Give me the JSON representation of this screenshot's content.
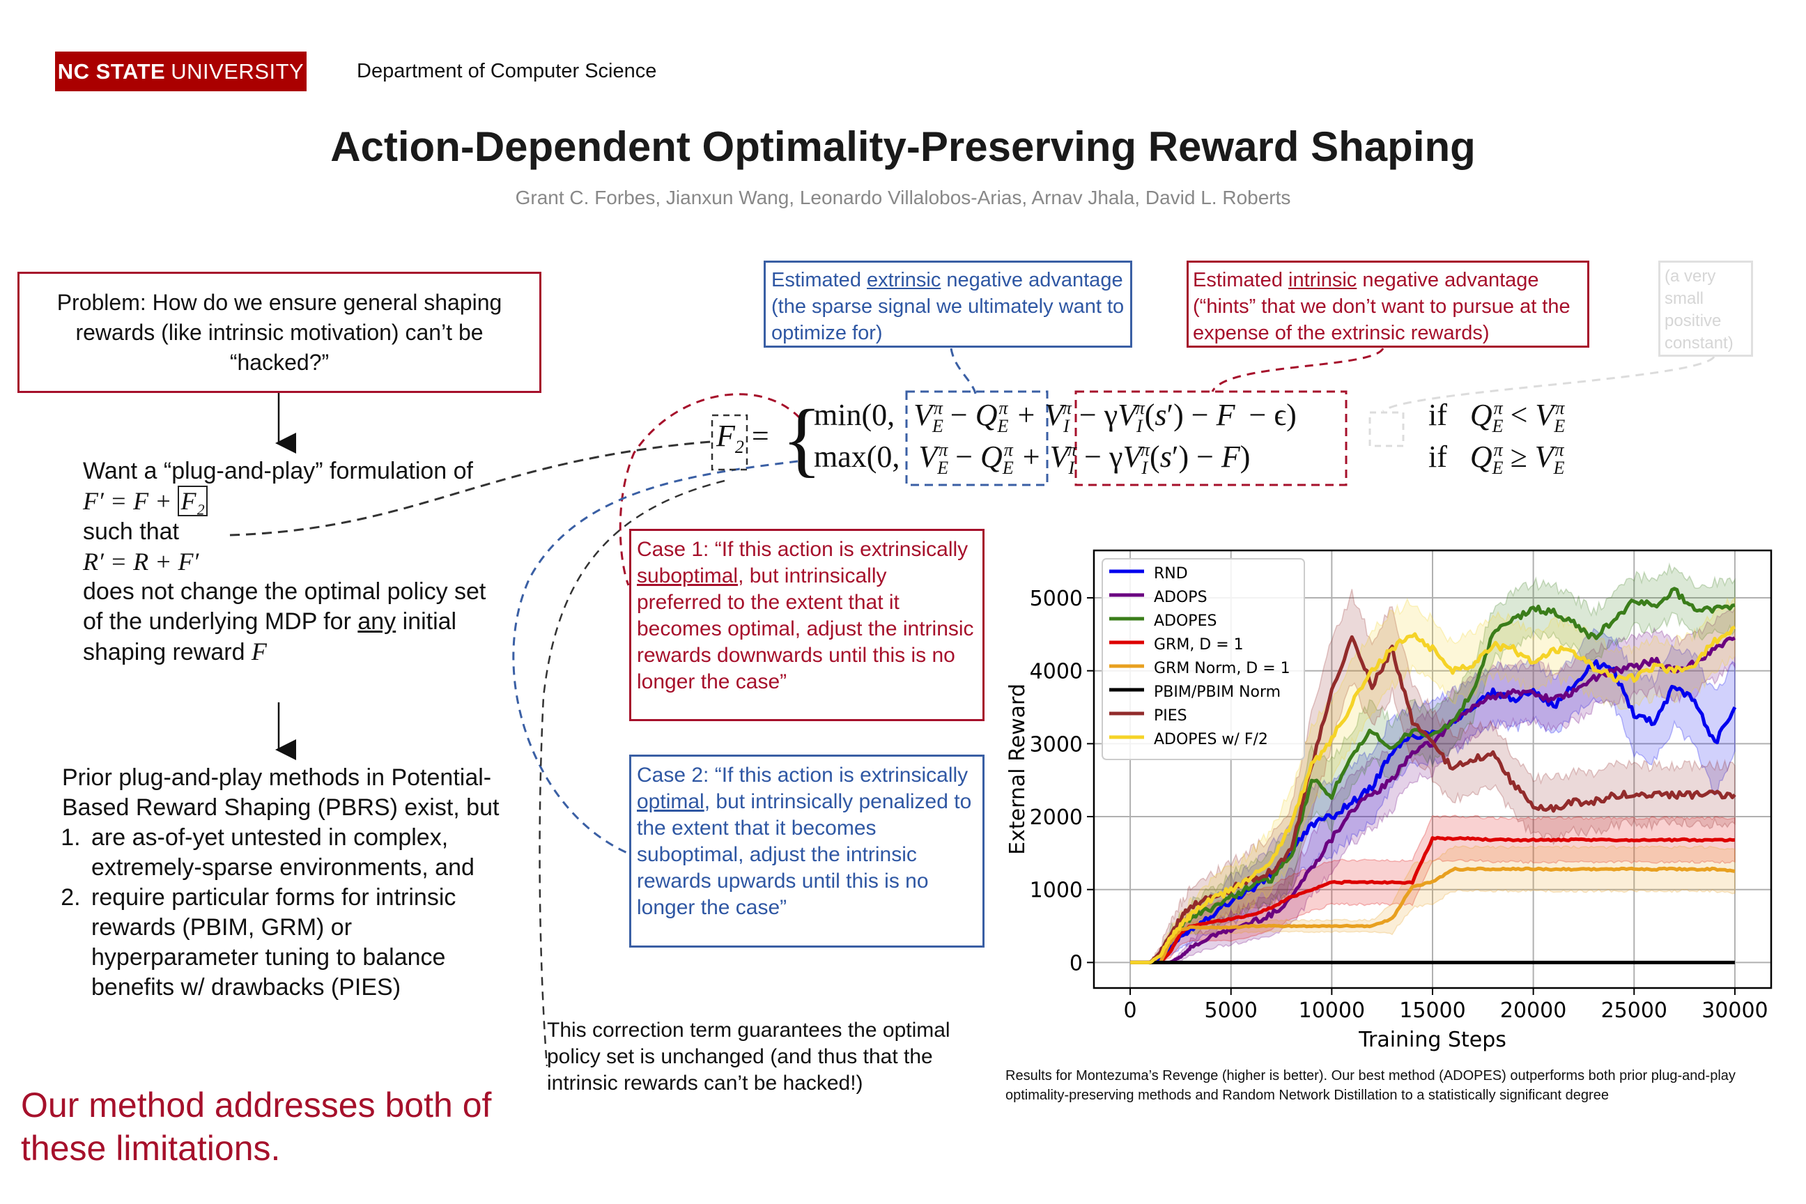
{
  "header": {
    "logo_bold": "NC STATE",
    "logo_light": "UNIVERSITY",
    "department": "Department of Computer Science",
    "title": "Action-Dependent Optimality-Preserving Reward Shaping",
    "authors": "Grant C. Forbes, Jianxun Wang, Leonardo Villalobos-Arias, Arnav Jhala, David L. Roberts"
  },
  "colors": {
    "brand_red": "#aa0000",
    "accent_red": "#a6102b",
    "accent_blue": "#2f57a3",
    "muted_gray": "#888888"
  },
  "left_column": {
    "problem": "Problem: How do we ensure general shaping rewards (like intrinsic motivation) can’t be “hacked?”",
    "want_line1": "Want a “plug-and-play” formulation of",
    "want_formula1": "F′ = F + ",
    "want_formula1_boxed": "F₂",
    "want_such_that": "such that",
    "want_formula2": "R′ = R + F′",
    "want_rest_pre": "does not change the optimal policy set of the underlying MDP for ",
    "want_rest_underlined": "any",
    "want_rest_post": " initial shaping reward ",
    "want_rest_var": "F",
    "prior_intro": "Prior plug-and-play methods in Potential-Based Reward Shaping (PBRS) exist, but",
    "prior_items": [
      "are as-of-yet untested in complex, extremely-sparse environments, and",
      "require particular forms for intrinsic rewards (PBIM, GRM) or hyperparameter tuning to balance benefits w/ drawbacks (PIES)"
    ],
    "conclusion": "Our method addresses both of these limitations."
  },
  "annotations": {
    "extrinsic_pre": "Estimated ",
    "extrinsic_underlined": "extrinsic",
    "extrinsic_post": " negative advantage (the sparse signal we ultimately want to optimize for)",
    "intrinsic_pre": "Estimated ",
    "intrinsic_underlined": "intrinsic",
    "intrinsic_post": " negative advantage (“hints” that we don’t want to pursue at the expense of the extrinsic rewards)",
    "epsilon_note": "(a very small positive constant)",
    "case1_pre": "Case 1: “If this action is extrinsically ",
    "case1_underlined": "suboptimal",
    "case1_post": ", but intrinsically preferred to the extent that it becomes optimal, adjust the intrinsic rewards downwards until this is no longer the case”",
    "case2_pre": "Case 2: “If this action is extrinsically ",
    "case2_underlined": "optimal",
    "case2_post": ", but intrinsically penalized to the extent that it becomes suboptimal, adjust the intrinsic rewards upwards until this is no longer the case”",
    "correction": "This correction term guarantees the optimal policy set is unchanged (and thus that the intrinsic rewards can’t be hacked!)"
  },
  "equation": {
    "lhs": "F",
    "lhs_sub": "2",
    "row1_op": "min(0, ",
    "row2_op": "max(0, ",
    "extrinsic_term": "V_E^π − Q_E^π",
    "intrinsic_term": "V_I^π − γV_I^π(s′) − F",
    "epsilon": "− ϵ)",
    "row2_close": ")",
    "cond1": "if  Q_E^π < V_E^π",
    "cond2": "if  Q_E^π ≥ V_E^π"
  },
  "caption": "Results for Montezuma’s Revenge (higher is better). Our best method (ADOPES) outperforms both prior plug-and-play optimality-preserving methods and Random Network Distillation to a statistically significant degree",
  "chart_data": {
    "type": "line",
    "title": "",
    "xlabel": "Training Steps",
    "ylabel": "External Reward",
    "xlim": [
      -1800,
      31800
    ],
    "ylim": [
      -350,
      5650
    ],
    "xticks": [
      0,
      5000,
      10000,
      15000,
      20000,
      25000,
      30000
    ],
    "yticks": [
      0,
      1000,
      2000,
      3000,
      4000,
      5000
    ],
    "grid": true,
    "legend_position": "top-left",
    "x": [
      0,
      1000,
      1500,
      2000,
      2500,
      3000,
      4000,
      5000,
      6000,
      7000,
      8000,
      9000,
      10000,
      11000,
      12000,
      13000,
      14000,
      15000,
      16000,
      17000,
      18000,
      19000,
      20000,
      21000,
      22000,
      23000,
      24000,
      25000,
      26000,
      27000,
      28000,
      29000,
      30000
    ],
    "series": [
      {
        "name": "RND",
        "color": "#0000ee",
        "values": [
          0,
          0,
          50,
          200,
          350,
          450,
          650,
          850,
          1000,
          1200,
          1500,
          1900,
          2000,
          2200,
          2400,
          2900,
          3100,
          3150,
          3300,
          3500,
          3700,
          3600,
          3750,
          3500,
          3800,
          4100,
          4000,
          3400,
          3300,
          3800,
          3600,
          3000,
          3500
        ],
        "band": [
          0,
          0,
          40,
          100,
          150,
          200,
          250,
          300,
          350,
          400,
          450,
          500,
          500,
          500,
          500,
          450,
          400,
          400,
          400,
          400,
          400,
          400,
          400,
          400,
          400,
          450,
          450,
          550,
          550,
          550,
          600,
          700,
          600
        ]
      },
      {
        "name": "ADOPS",
        "color": "#6a0080",
        "values": [
          0,
          0,
          0,
          0,
          80,
          200,
          350,
          450,
          550,
          650,
          900,
          1300,
          1700,
          2100,
          2300,
          2500,
          2900,
          3000,
          3300,
          3500,
          3650,
          3700,
          3700,
          3600,
          3700,
          3900,
          4000,
          4050,
          4150,
          4000,
          4100,
          4300,
          4450
        ],
        "band": [
          0,
          0,
          0,
          0,
          60,
          100,
          150,
          200,
          250,
          300,
          350,
          400,
          450,
          450,
          450,
          400,
          400,
          400,
          400,
          400,
          400,
          400,
          400,
          400,
          400,
          400,
          400,
          400,
          400,
          400,
          400,
          400,
          400
        ]
      },
      {
        "name": "ADOPES",
        "color": "#3a7d1a",
        "values": [
          0,
          0,
          100,
          350,
          500,
          600,
          750,
          900,
          1050,
          1150,
          1450,
          2500,
          2300,
          2800,
          3200,
          2900,
          3200,
          3100,
          3300,
          3700,
          4500,
          4700,
          4850,
          4800,
          4650,
          4450,
          4700,
          4950,
          4900,
          5100,
          4850,
          4850,
          4900
        ],
        "band": [
          0,
          0,
          60,
          100,
          150,
          200,
          250,
          300,
          300,
          350,
          400,
          450,
          450,
          400,
          400,
          400,
          350,
          350,
          350,
          350,
          350,
          350,
          350,
          350,
          350,
          350,
          350,
          350,
          350,
          350,
          350,
          350,
          350
        ]
      },
      {
        "name": "GRM, D = 1",
        "color": "#dd0000",
        "values": [
          0,
          0,
          0,
          150,
          400,
          500,
          550,
          600,
          650,
          750,
          900,
          1000,
          1100,
          1100,
          1100,
          1100,
          1100,
          1700,
          1700,
          1700,
          1680,
          1680,
          1680,
          1680,
          1680,
          1680,
          1680,
          1680,
          1680,
          1680,
          1680,
          1680,
          1680
        ],
        "band": [
          0,
          0,
          0,
          80,
          150,
          200,
          250,
          300,
          300,
          300,
          300,
          300,
          300,
          300,
          300,
          300,
          300,
          300,
          300,
          300,
          300,
          300,
          300,
          300,
          300,
          300,
          300,
          300,
          300,
          300,
          300,
          300,
          300
        ]
      },
      {
        "name": "GRM Norm, D = 1",
        "color": "#e8a020",
        "values": [
          0,
          0,
          0,
          300,
          450,
          480,
          480,
          480,
          500,
          500,
          500,
          500,
          500,
          500,
          500,
          600,
          1050,
          1100,
          1280,
          1280,
          1280,
          1280,
          1280,
          1280,
          1280,
          1280,
          1280,
          1280,
          1280,
          1280,
          1280,
          1280,
          1250
        ],
        "band": [
          0,
          0,
          0,
          50,
          80,
          80,
          80,
          80,
          80,
          80,
          80,
          80,
          80,
          80,
          80,
          200,
          300,
          300,
          300,
          300,
          300,
          300,
          300,
          300,
          300,
          300,
          300,
          300,
          300,
          300,
          300,
          300,
          300
        ]
      },
      {
        "name": "PBIM/PBIM Norm",
        "color": "#000000",
        "values": [
          0,
          0,
          0,
          0,
          0,
          0,
          0,
          0,
          0,
          0,
          0,
          0,
          0,
          0,
          0,
          0,
          0,
          0,
          0,
          0,
          0,
          0,
          0,
          0,
          0,
          0,
          0,
          0,
          0,
          0,
          0,
          0,
          0
        ],
        "band": [
          0,
          0,
          0,
          0,
          0,
          0,
          0,
          0,
          0,
          0,
          0,
          0,
          0,
          0,
          0,
          0,
          0,
          0,
          0,
          0,
          0,
          0,
          0,
          0,
          0,
          0,
          0,
          0,
          0,
          0,
          0,
          0,
          0
        ]
      },
      {
        "name": "PIES",
        "color": "#922b2b",
        "values": [
          0,
          0,
          150,
          400,
          600,
          750,
          900,
          1000,
          1150,
          1250,
          1550,
          2700,
          3700,
          4450,
          3800,
          4300,
          3300,
          3000,
          2650,
          2800,
          2850,
          2450,
          2150,
          2100,
          2200,
          2200,
          2300,
          2300,
          2300,
          2300,
          2300,
          2300,
          2300
        ],
        "band": [
          0,
          0,
          80,
          150,
          200,
          250,
          300,
          350,
          400,
          450,
          600,
          700,
          700,
          600,
          600,
          600,
          500,
          450,
          450,
          450,
          450,
          400,
          400,
          400,
          400,
          400,
          400,
          400,
          400,
          400,
          400,
          400,
          400
        ]
      },
      {
        "name": "ADOPES w/ F/2",
        "color": "#f5d327",
        "values": [
          0,
          0,
          100,
          350,
          500,
          650,
          850,
          1000,
          1150,
          1400,
          1900,
          2700,
          3050,
          3550,
          4000,
          4300,
          4500,
          4300,
          4000,
          4100,
          4350,
          4300,
          4100,
          4300,
          4250,
          4050,
          3900,
          3900,
          4050,
          4000,
          4100,
          4400,
          4600
        ],
        "band": [
          0,
          0,
          60,
          100,
          150,
          200,
          250,
          300,
          350,
          400,
          500,
          550,
          550,
          550,
          550,
          500,
          450,
          400,
          400,
          400,
          400,
          400,
          400,
          400,
          400,
          400,
          400,
          400,
          400,
          400,
          400,
          400,
          400
        ]
      }
    ]
  }
}
